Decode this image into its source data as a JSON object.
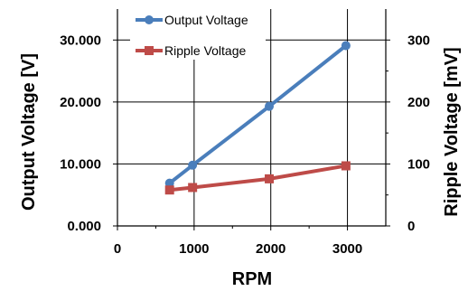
{
  "chart_data": {
    "type": "line",
    "xlabel": "RPM",
    "ylabel": "Output Voltage [V]",
    "y2label": "Ripple Voltage [mV]",
    "xlim": [
      0,
      3500
    ],
    "ylim": [
      0,
      35
    ],
    "y2lim": [
      0,
      350
    ],
    "x_ticks": [
      "0",
      "1000",
      "2000",
      "3000"
    ],
    "y_ticks": [
      "0.000",
      "10.000",
      "20.000",
      "30.000"
    ],
    "y2_ticks": [
      "0",
      "100",
      "200",
      "300"
    ],
    "grid": true,
    "legend_position": "top-left",
    "series": [
      {
        "name": "Output Voltage",
        "axis": "left",
        "color": "#4a7ebb",
        "marker": "circle",
        "x": [
          680,
          980,
          1980,
          2980
        ],
        "y": [
          6.9,
          9.8,
          19.3,
          29.1
        ]
      },
      {
        "name": "Ripple Voltage",
        "axis": "right",
        "color": "#be4b48",
        "marker": "square",
        "x": [
          680,
          980,
          1980,
          2980
        ],
        "y": [
          58,
          62,
          76,
          97
        ]
      }
    ]
  }
}
